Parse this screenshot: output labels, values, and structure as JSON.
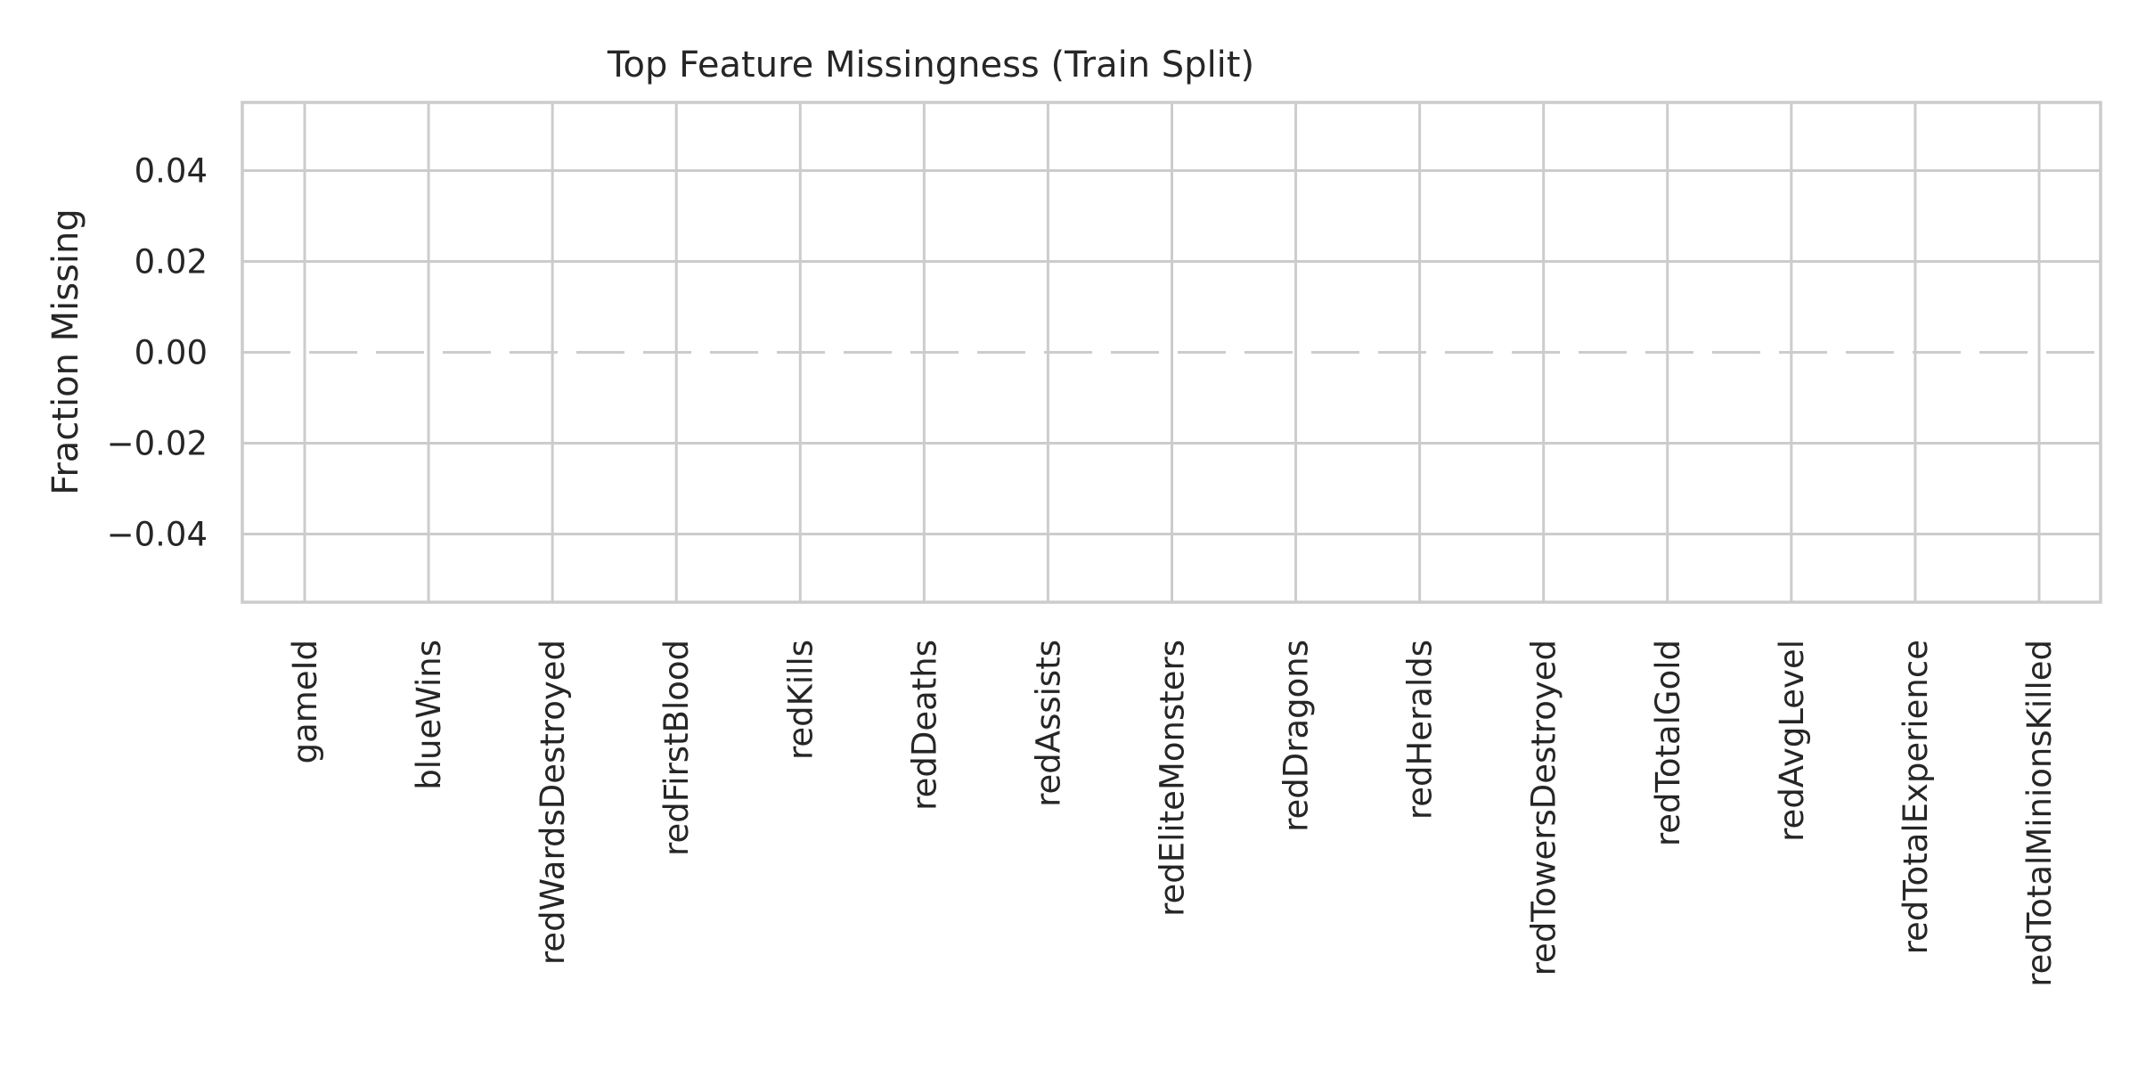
{
  "chart_data": {
    "type": "bar",
    "title": "Top Feature Missingness (Train Split)",
    "xlabel": "",
    "ylabel": "Fraction Missing",
    "ylim": [
      -0.055,
      0.055
    ],
    "yticks": [
      -0.04,
      -0.02,
      0.0,
      0.02,
      0.04
    ],
    "ytick_labels": [
      "−0.04",
      "−0.02",
      "0.00",
      "0.02",
      "0.04"
    ],
    "grid": true,
    "reference_line": {
      "y": 0.0,
      "style": "dashed"
    },
    "categories": [
      "gameId",
      "blueWins",
      "redWardsDestroyed",
      "redFirstBlood",
      "redKills",
      "redDeaths",
      "redAssists",
      "redEliteMonsters",
      "redDragons",
      "redHeralds",
      "redTowersDestroyed",
      "redTotalGold",
      "redAvgLevel",
      "redTotalExperience",
      "redTotalMinionsKilled"
    ],
    "values": [
      0,
      0,
      0,
      0,
      0,
      0,
      0,
      0,
      0,
      0,
      0,
      0,
      0,
      0,
      0
    ],
    "colors": {
      "bar": "#4c72b0",
      "grid": "#cccccc",
      "text": "#262626"
    }
  }
}
